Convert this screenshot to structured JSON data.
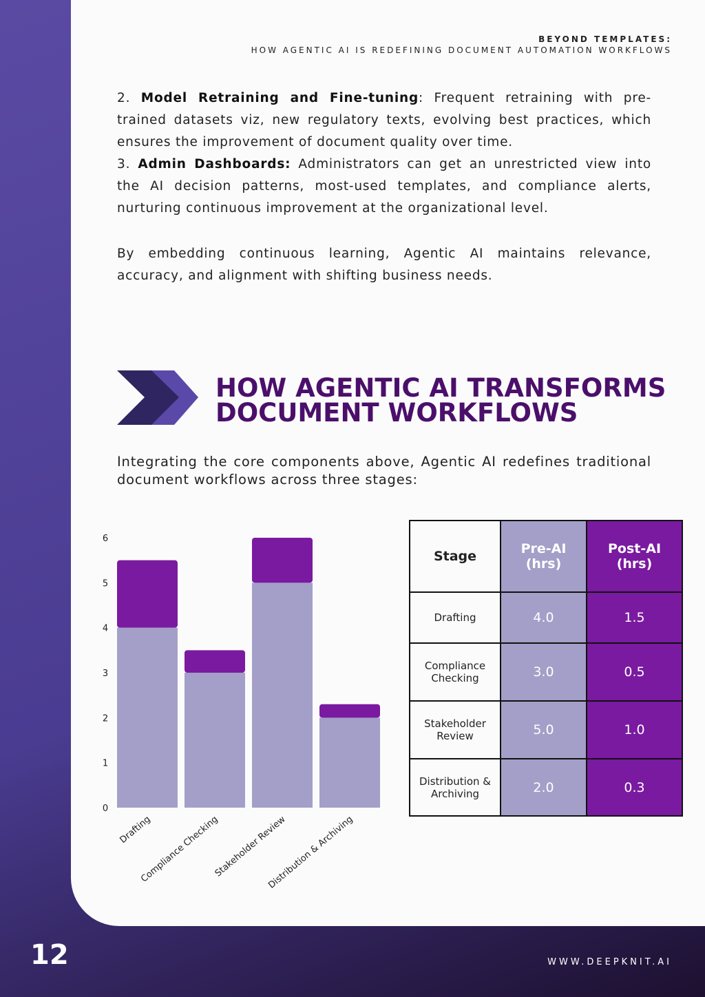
{
  "header": {
    "title": "BEYOND TEMPLATES:",
    "subtitle": "HOW AGENTIC AI IS REDEFINING DOCUMENT AUTOMATION WORKFLOWS"
  },
  "items": [
    {
      "lead": "2.",
      "bold": "Model Retraining and Fine-tuning",
      "text": ": Frequent retraining with pre-trained datasets viz, new regulatory texts, evolving best practices, which ensures the improvement of document quality over time."
    },
    {
      "lead": "3.",
      "bold": "Admin Dashboards:",
      "text": "Administrators can get an unrestricted view into the AI decision patterns, most-used templates, and compliance alerts, nurturing continuous improvement at the organizational level."
    }
  ],
  "conclusion": "By embedding continuous learning, Agentic AI maintains relevance, accuracy, and alignment with shifting business needs.",
  "section_heading": {
    "line1": "HOW AGENTIC AI TRANSFORMS",
    "line2": "DOCUMENT WORKFLOWS"
  },
  "intro": "Integrating the core components above, Agentic AI redefines traditional document workflows across three stages:",
  "chart_data": {
    "type": "stacked_bar",
    "categories": [
      "Drafting",
      "Compliance Checking",
      "Stakeholder Review",
      "Distribution & Archiving"
    ],
    "series": [
      {
        "color": "#a39fc8",
        "values": [
          4.0,
          3.0,
          5.0,
          2.0
        ]
      },
      {
        "color": "#7a1aa0",
        "values": [
          1.5,
          0.5,
          1.0,
          0.3
        ]
      }
    ],
    "ylim": [
      0,
      6
    ],
    "yticks": [
      0,
      1,
      2,
      3,
      4,
      5,
      6
    ]
  },
  "table": {
    "header": [
      "Stage",
      "Pre-AI (hrs)",
      "Post-AI (hrs)"
    ],
    "rows": [
      [
        "Drafting",
        "4.0",
        "1.5"
      ],
      [
        "Compliance Checking",
        "3.0",
        "0.5"
      ],
      [
        "Stakeholder Review",
        "5.0",
        "1.0"
      ],
      [
        "Distribution & Archiving",
        "2.0",
        "0.3"
      ]
    ]
  },
  "footer": {
    "page": "12",
    "website": "WWW.DEEPKNIT.AI"
  }
}
